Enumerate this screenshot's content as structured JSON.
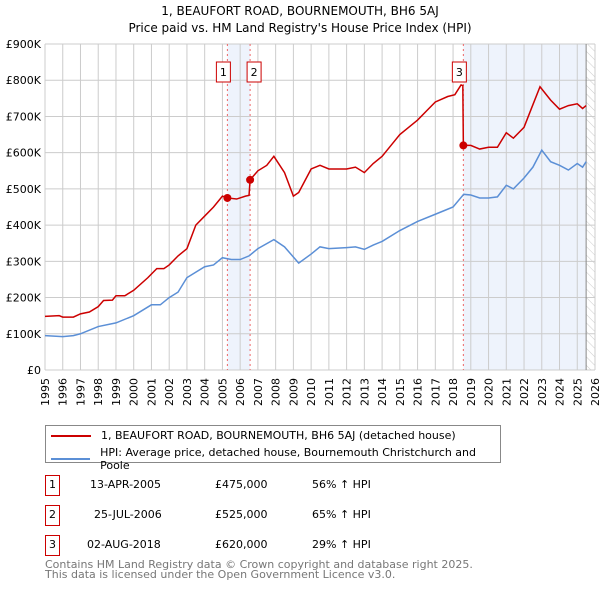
{
  "chart_data": {
    "type": "line",
    "title": "1, BEAUFORT ROAD, BOURNEMOUTH, BH6 5AJ",
    "subtitle": "Price paid vs. HM Land Registry's House Price Index (HPI)",
    "xlim": [
      1995,
      2026
    ],
    "ylim": [
      0,
      900000
    ],
    "x_ticks": [
      "1995",
      "1996",
      "1997",
      "1998",
      "1999",
      "2000",
      "2001",
      "2002",
      "2003",
      "2004",
      "2005",
      "2006",
      "2007",
      "2008",
      "2009",
      "2010",
      "2011",
      "2012",
      "2013",
      "2014",
      "2015",
      "2016",
      "2017",
      "2018",
      "2019",
      "2020",
      "2021",
      "2022",
      "2023",
      "2024",
      "2025",
      "2026"
    ],
    "y_ticks": [
      {
        "v": 0,
        "label": "£0"
      },
      {
        "v": 100000,
        "label": "£100K"
      },
      {
        "v": 200000,
        "label": "£200K"
      },
      {
        "v": 300000,
        "label": "£300K"
      },
      {
        "v": 400000,
        "label": "£400K"
      },
      {
        "v": 500000,
        "label": "£500K"
      },
      {
        "v": 600000,
        "label": "£600K"
      },
      {
        "v": 700000,
        "label": "£700K"
      },
      {
        "v": 800000,
        "label": "£800K"
      },
      {
        "v": 900000,
        "label": "£900K"
      }
    ],
    "grid": true,
    "series": [
      {
        "name": "1, BEAUFORT ROAD, BOURNEMOUTH, BH6 5AJ (detached house)",
        "color": "#cc0000",
        "x": [
          1995,
          1995.8,
          1996,
          1996.6,
          1997,
          1997.5,
          1998,
          1998.3,
          1998.8,
          1999,
          1999.5,
          2000,
          2000.8,
          2001.3,
          2001.7,
          2002,
          2002.5,
          2003,
          2003.5,
          2004,
          2004.5,
          2005,
          2005.28,
          2005.8,
          2006.3,
          2006.5,
          2006.56,
          2007,
          2007.5,
          2007.9,
          2008.5,
          2009,
          2009.3,
          2010,
          2010.5,
          2011,
          2012,
          2012.5,
          2013,
          2013.5,
          2014,
          2014.5,
          2015,
          2015.5,
          2016,
          2016.5,
          2017,
          2017.7,
          2018.1,
          2018.45,
          2018.55,
          2018.58,
          2019,
          2019.5,
          2020,
          2020.5,
          2021,
          2021.4,
          2022,
          2022.4,
          2022.9,
          2023.5,
          2024,
          2024.5,
          2025,
          2025.3,
          2025.5
        ],
        "y": [
          148000,
          150000,
          146000,
          146000,
          155000,
          160000,
          175000,
          192000,
          193000,
          205000,
          205000,
          220000,
          255000,
          280000,
          280000,
          290000,
          315000,
          335000,
          400000,
          425000,
          450000,
          480000,
          475000,
          472000,
          480000,
          482000,
          525000,
          550000,
          565000,
          590000,
          545000,
          480000,
          490000,
          555000,
          565000,
          555000,
          555000,
          560000,
          545000,
          570000,
          590000,
          620000,
          650000,
          670000,
          690000,
          715000,
          740000,
          755000,
          760000,
          787000,
          785000,
          620000,
          620000,
          610000,
          615000,
          615000,
          655000,
          640000,
          670000,
          720000,
          782000,
          745000,
          720000,
          730000,
          735000,
          722000,
          730000
        ]
      },
      {
        "name": "HPI: Average price, detached house, Bournemouth Christchurch and Poole",
        "color": "#5b8fd6",
        "x": [
          1995,
          1996,
          1996.6,
          1997,
          1998,
          1999,
          2000,
          2001,
          2001.5,
          2002,
          2002.5,
          2003,
          2004,
          2004.5,
          2005,
          2005.5,
          2006,
          2006.5,
          2007,
          2007.9,
          2008.5,
          2009.3,
          2010,
          2010.5,
          2011,
          2012,
          2012.5,
          2013,
          2013.5,
          2014,
          2015,
          2016,
          2017,
          2017.5,
          2018,
          2018.6,
          2019,
          2019.5,
          2020,
          2020.5,
          2021,
          2021.4,
          2022,
          2022.5,
          2023,
          2023.5,
          2024,
          2024.5,
          2025,
          2025.3,
          2025.5
        ],
        "y": [
          95000,
          92000,
          95000,
          100000,
          120000,
          130000,
          150000,
          180000,
          180000,
          200000,
          215000,
          255000,
          285000,
          290000,
          310000,
          305000,
          305000,
          315000,
          335000,
          360000,
          340000,
          295000,
          320000,
          340000,
          335000,
          338000,
          340000,
          333000,
          345000,
          355000,
          385000,
          410000,
          430000,
          440000,
          450000,
          485000,
          483000,
          475000,
          475000,
          478000,
          510000,
          500000,
          530000,
          560000,
          607000,
          575000,
          565000,
          552000,
          570000,
          560000,
          575000
        ]
      }
    ],
    "sales": [
      {
        "n": "1",
        "x": 2005.28,
        "y": 475000
      },
      {
        "n": "2",
        "x": 2006.56,
        "y": 525000
      },
      {
        "n": "3",
        "x": 2018.58,
        "y": 620000
      }
    ],
    "shaded": [
      [
        2005.28,
        2006.56
      ],
      [
        2018.58,
        2025.5
      ]
    ],
    "hatched_from": 2025.5
  },
  "legend": {
    "items": [
      "1, BEAUFORT ROAD, BOURNEMOUTH, BH6 5AJ (detached house)",
      "HPI: Average price, detached house, Bournemouth Christchurch and Poole"
    ]
  },
  "table": [
    {
      "n": "1",
      "date": "13-APR-2005",
      "price": "£475,000",
      "hpi": "56% ↑ HPI"
    },
    {
      "n": "2",
      "date": "25-JUL-2006",
      "price": "£525,000",
      "hpi": "65% ↑ HPI"
    },
    {
      "n": "3",
      "date": "02-AUG-2018",
      "price": "£620,000",
      "hpi": "29% ↑ HPI"
    }
  ],
  "footer": {
    "line1": "Contains HM Land Registry data © Crown copyright and database right 2025.",
    "line2": "This data is licensed under the Open Government Licence v3.0."
  }
}
